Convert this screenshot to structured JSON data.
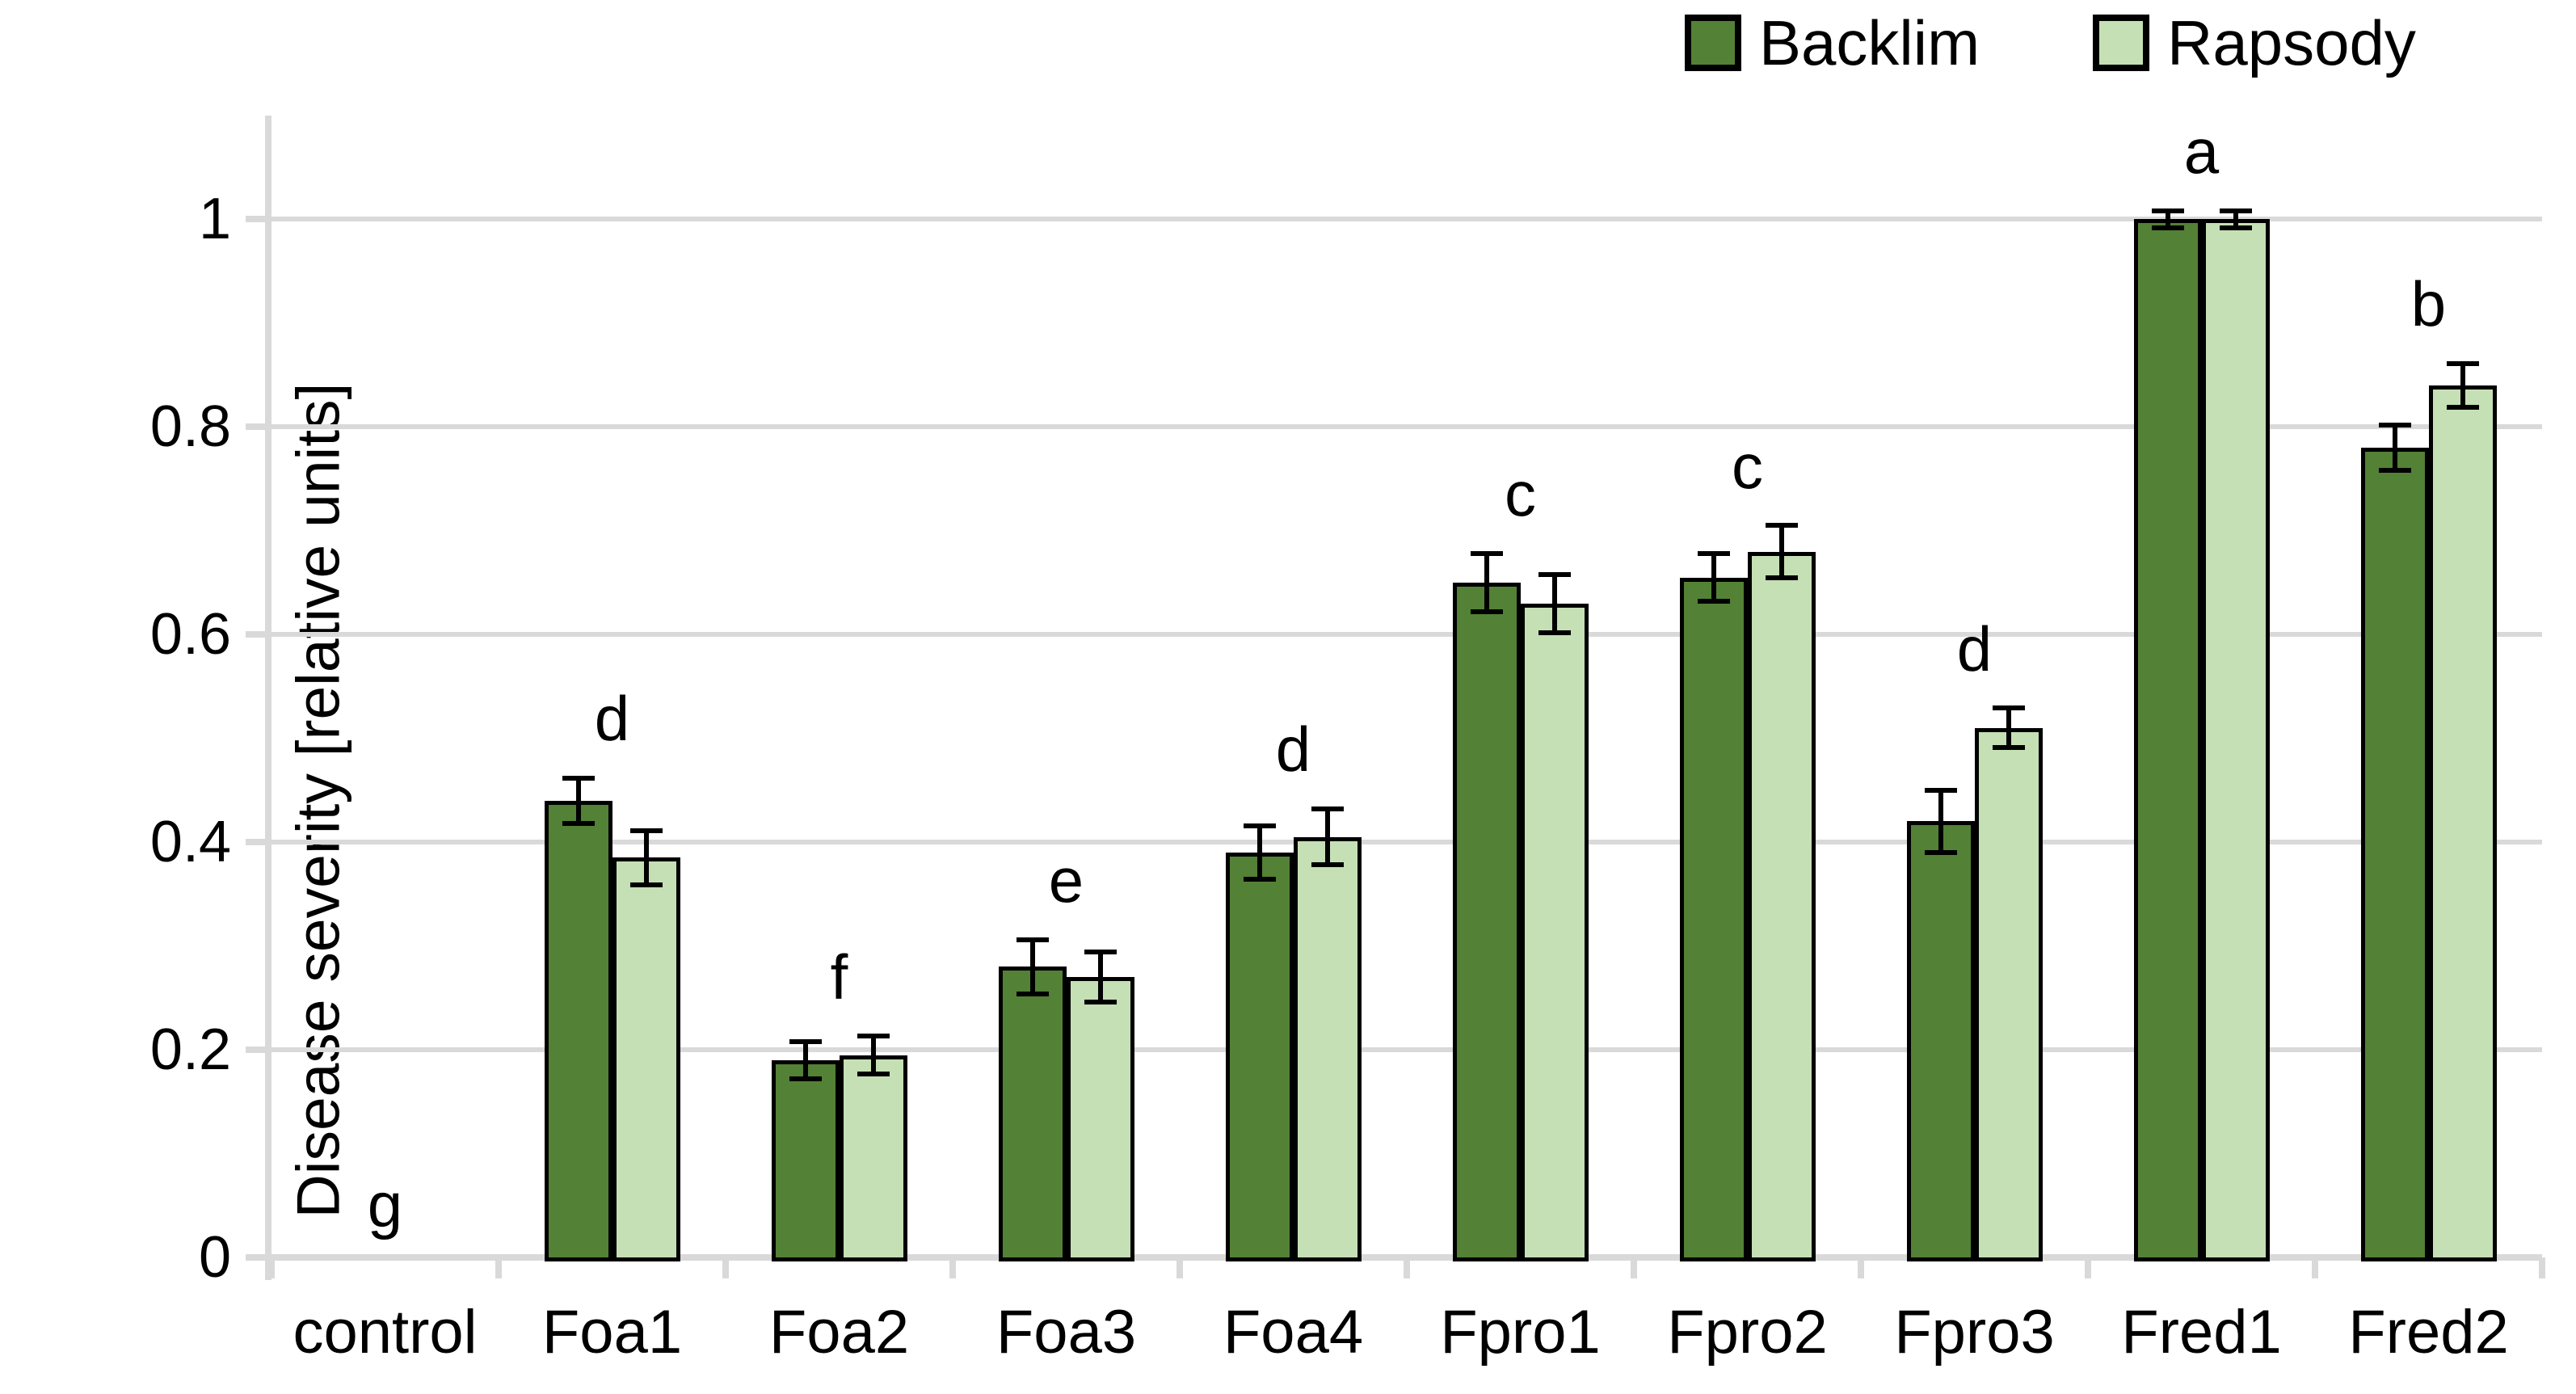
{
  "chart_data": {
    "type": "bar",
    "title": "",
    "xlabel": "",
    "ylabel": "Disease severity [relative units]",
    "categories": [
      "control",
      "Foa1",
      "Foa2",
      "Foa3",
      "Foa4",
      "Fpro1",
      "Fpro2",
      "Fpro3",
      "Fred1",
      "Fred2"
    ],
    "series": [
      {
        "name": "Backlim",
        "color": "#538135",
        "values": [
          0,
          0.44,
          0.19,
          0.28,
          0.39,
          0.65,
          0.655,
          0.42,
          1.0,
          0.78
        ],
        "errors": [
          0,
          0.022,
          0.018,
          0.026,
          0.026,
          0.028,
          0.023,
          0.03,
          0.008,
          0.022
        ]
      },
      {
        "name": "Rapsody",
        "color": "#C5E0B4",
        "values": [
          0,
          0.385,
          0.195,
          0.27,
          0.405,
          0.63,
          0.68,
          0.51,
          1.0,
          0.84
        ],
        "errors": [
          0,
          0.026,
          0.018,
          0.024,
          0.027,
          0.028,
          0.025,
          0.019,
          0.008,
          0.021
        ]
      }
    ],
    "group_letters": [
      "g",
      "d",
      "f",
      "e",
      "d",
      "c",
      "c",
      "d",
      "a",
      "b"
    ],
    "ylim": [
      0,
      1.1
    ],
    "yticks": [
      0,
      0.2,
      0.4,
      0.6,
      0.8,
      1
    ],
    "ytick_labels": [
      "0",
      "0.2",
      "0.4",
      "0.6",
      "0.8",
      "1"
    ],
    "grid": true,
    "legend_position": "top-right",
    "bar_border_color": "#000000",
    "error_bar_color": "#000000",
    "gridline_color": "#D9D9D9",
    "axis_line_color": "#D9D9D9",
    "text_color": "#000000"
  }
}
